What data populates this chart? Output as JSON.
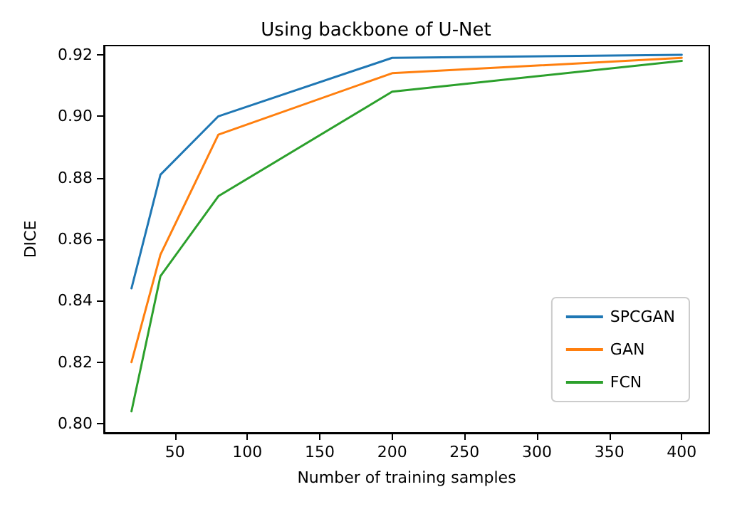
{
  "chart_data": {
    "type": "line",
    "title": "Using backbone of U-Net",
    "xlabel": "Number of training samples",
    "ylabel": "DICE",
    "x": [
      20,
      40,
      80,
      200,
      400
    ],
    "series": [
      {
        "name": "SPCGAN",
        "color": "#1f77b4",
        "values": [
          0.844,
          0.881,
          0.9,
          0.919,
          0.92
        ]
      },
      {
        "name": "GAN",
        "color": "#ff7f0e",
        "values": [
          0.82,
          0.855,
          0.894,
          0.914,
          0.919
        ]
      },
      {
        "name": "FCN",
        "color": "#2ca02c",
        "values": [
          0.804,
          0.848,
          0.874,
          0.908,
          0.918
        ]
      }
    ],
    "xlim": [
      1,
      419
    ],
    "xticks": [
      50,
      100,
      150,
      200,
      250,
      300,
      350,
      400
    ],
    "ylim": [
      0.797,
      0.923
    ],
    "yticks": [
      {
        "value": 0.8,
        "label": "0.80"
      },
      0.82,
      0.84,
      0.86,
      0.88,
      {
        "value": 0.9,
        "label": "0.90"
      },
      0.92
    ],
    "grid": false,
    "legend": "bottom right",
    "marker": "none",
    "line_style": "solid"
  }
}
